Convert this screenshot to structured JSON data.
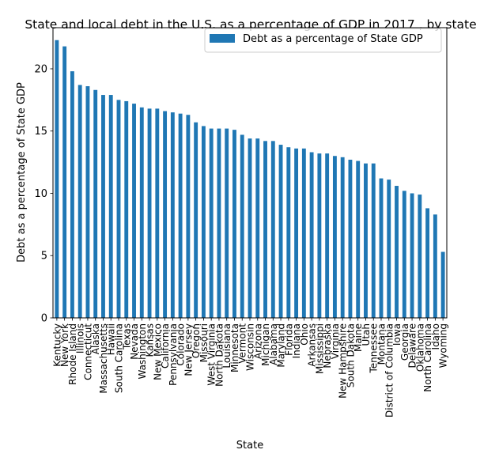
{
  "chart_data": {
    "type": "bar",
    "title": "State and local debt in the U.S. as a percentage of GDP in 2017 , by state",
    "xlabel": "State",
    "ylabel": "Debt as a percentage of State GDP",
    "ylim": [
      0,
      23.3
    ],
    "yticks": [
      0,
      5,
      10,
      15,
      20
    ],
    "grid": false,
    "legend_position": "top-right",
    "color": "#1f77b4",
    "categories": [
      "Kentucky",
      "New York",
      "Rhode Island",
      "Illinois",
      "Connecticut",
      "Alaska",
      "Massachusetts",
      "Hawaii",
      "South Carolina",
      "Texas",
      "Nevada",
      "Washington",
      "Kansas",
      "New Mexico",
      "California",
      "Pennsylvania",
      "Colorado",
      "New Jersey",
      "Oregon",
      "Missouri",
      "West Virginia",
      "North Dakota",
      "Louisiana",
      "Minnesota",
      "Vermont",
      "Wisconsin",
      "Arizona",
      "Michigan",
      "Alabama",
      "Maryland",
      "Florida",
      "Indiana",
      "Ohio",
      "Arkansas",
      "Mississippi",
      "Nebraska",
      "Virginia",
      "New Hampshire",
      "South Dakota",
      "Maine",
      "Utah",
      "Tennessee",
      "Montana",
      "District of Columbia",
      "Iowa",
      "Georgia",
      "Delaware",
      "Oklahoma",
      "North Carolina",
      "Idaho",
      "Wyoming"
    ],
    "series": [
      {
        "name": "Debt as a percentage of State GDP",
        "values": [
          22.3,
          21.8,
          19.8,
          18.7,
          18.6,
          18.3,
          17.9,
          17.9,
          17.5,
          17.4,
          17.2,
          16.9,
          16.8,
          16.8,
          16.6,
          16.5,
          16.4,
          16.3,
          15.7,
          15.4,
          15.2,
          15.2,
          15.2,
          15.1,
          14.7,
          14.4,
          14.4,
          14.2,
          14.2,
          13.9,
          13.7,
          13.6,
          13.6,
          13.3,
          13.2,
          13.2,
          13.0,
          12.9,
          12.7,
          12.6,
          12.4,
          12.4,
          11.2,
          11.1,
          10.6,
          10.2,
          10.0,
          9.9,
          8.8,
          8.3,
          5.3
        ]
      }
    ]
  }
}
